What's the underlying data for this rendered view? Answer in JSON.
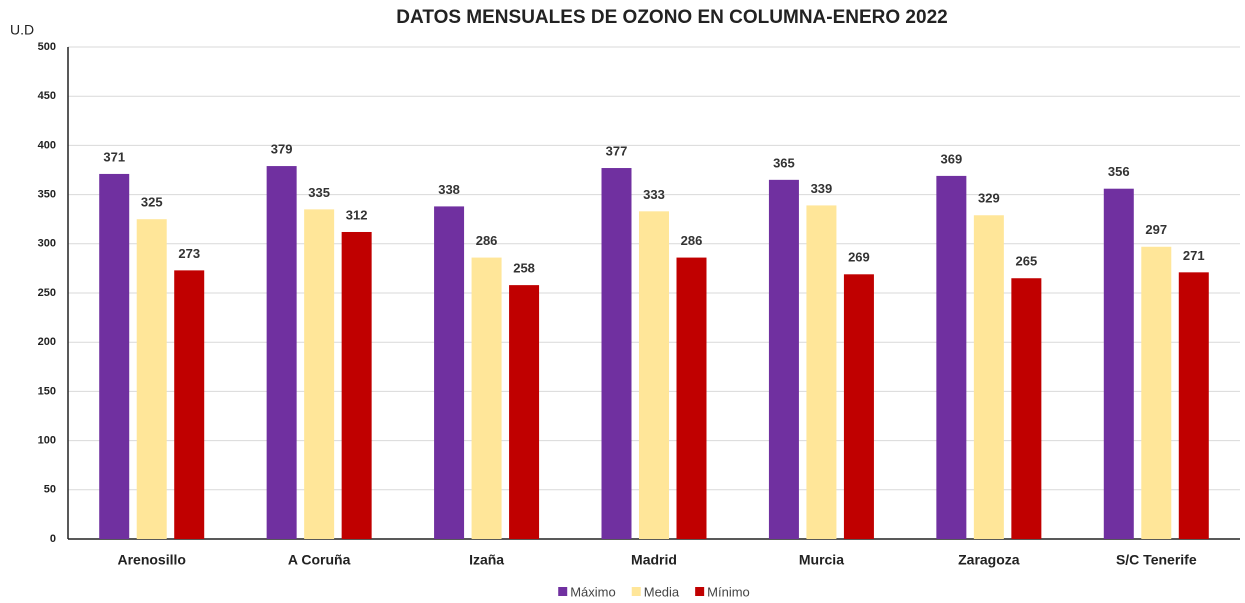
{
  "chart_data": {
    "type": "bar",
    "title": "DATOS MENSUALES DE OZONO EN COLUMNA-ENERO 2022",
    "y_label": "U.D",
    "categories": [
      "Arenosillo",
      "A Coruña",
      "Izaña",
      "Madrid",
      "Murcia",
      "Zaragoza",
      "S/C Tenerife"
    ],
    "series": [
      {
        "name": "Máximo",
        "color": "#7030a0",
        "values": [
          371,
          379,
          338,
          377,
          365,
          369,
          356
        ]
      },
      {
        "name": "Media",
        "color": "#ffe699",
        "values": [
          325,
          335,
          286,
          333,
          339,
          329,
          297
        ]
      },
      {
        "name": "Mínimo",
        "color": "#c00000",
        "values": [
          273,
          312,
          258,
          286,
          269,
          265,
          271
        ]
      }
    ],
    "ylim": [
      0,
      500
    ],
    "yticks": [
      0,
      50,
      100,
      150,
      200,
      250,
      300,
      350,
      400,
      450,
      500
    ],
    "grid": true,
    "legend": "bottom"
  }
}
